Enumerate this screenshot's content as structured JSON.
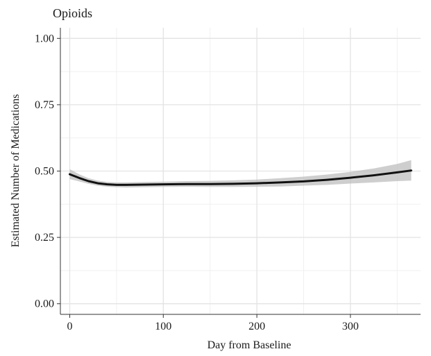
{
  "chart_data": {
    "type": "line",
    "title": "Opioids",
    "xlabel": "Day from Baseline",
    "ylabel": "Estimated Number of Medications",
    "xlim": [
      -10,
      375
    ],
    "ylim": [
      -0.04,
      1.04
    ],
    "xticks": [
      0,
      100,
      200,
      300
    ],
    "yticks": [
      0.0,
      0.25,
      0.5,
      0.75,
      1.0
    ],
    "ytick_labels": [
      "0.00",
      "0.25",
      "0.50",
      "0.75",
      "1.00"
    ],
    "grid": true,
    "series": [
      {
        "x": [
          0,
          10,
          20,
          30,
          40,
          50,
          60,
          80,
          100,
          125,
          150,
          175,
          200,
          225,
          250,
          275,
          300,
          325,
          350,
          365
        ],
        "y": [
          0.488,
          0.474,
          0.462,
          0.454,
          0.45,
          0.448,
          0.448,
          0.449,
          0.45,
          0.451,
          0.451,
          0.452,
          0.454,
          0.457,
          0.461,
          0.467,
          0.475,
          0.484,
          0.495,
          0.502
        ],
        "ci_lower": [
          0.47,
          0.461,
          0.452,
          0.445,
          0.441,
          0.439,
          0.438,
          0.439,
          0.44,
          0.441,
          0.44,
          0.44,
          0.441,
          0.442,
          0.445,
          0.448,
          0.453,
          0.457,
          0.462,
          0.464
        ],
        "ci_upper": [
          0.507,
          0.488,
          0.473,
          0.464,
          0.459,
          0.457,
          0.457,
          0.459,
          0.46,
          0.462,
          0.463,
          0.465,
          0.468,
          0.473,
          0.479,
          0.487,
          0.497,
          0.51,
          0.527,
          0.541
        ],
        "color": "#111111",
        "band_color": "#bdbdbd"
      }
    ]
  }
}
